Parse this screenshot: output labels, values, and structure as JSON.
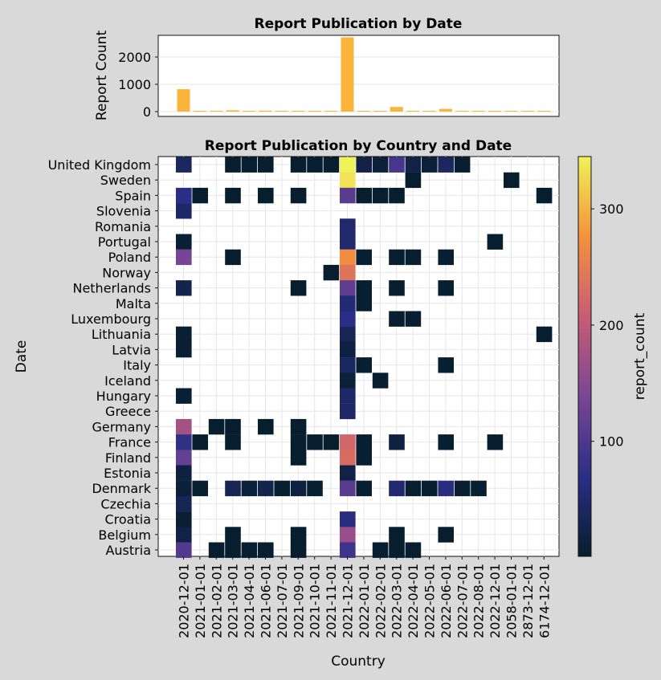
{
  "chart_data": [
    {
      "type": "bar",
      "title": "Report Publication by Date",
      "ylabel": "Report Count",
      "ylim": [
        0,
        2900
      ],
      "yticks": [
        0,
        1000,
        2000
      ],
      "grid": true,
      "categories": [
        "2020-12-01",
        "2021-01-01",
        "2021-02-01",
        "2021-03-01",
        "2021-04-01",
        "2021-06-01",
        "2021-07-01",
        "2021-09-01",
        "2021-10-01",
        "2021-11-01",
        "2021-12-01",
        "2022-01-01",
        "2022-02-01",
        "2022-03-01",
        "2022-04-01",
        "2022-05-01",
        "2022-06-01",
        "2022-07-01",
        "2022-08-01",
        "2022-12-01",
        "2058-01-01",
        "2873-12-01",
        "6174-12-01"
      ],
      "values": [
        820,
        5,
        5,
        50,
        5,
        35,
        5,
        30,
        5,
        5,
        2720,
        30,
        5,
        170,
        30,
        5,
        100,
        5,
        5,
        5,
        5,
        5,
        5
      ],
      "color": "#fbb43a"
    },
    {
      "type": "heatmap",
      "title": "Report Publication by Country and Date",
      "xlabel": "Country",
      "ylabel": "Date",
      "grid": true,
      "x": [
        "2020-12-01",
        "2021-01-01",
        "2021-02-01",
        "2021-03-01",
        "2021-04-01",
        "2021-06-01",
        "2021-07-01",
        "2021-09-01",
        "2021-10-01",
        "2021-11-01",
        "2021-12-01",
        "2022-01-01",
        "2022-02-01",
        "2022-03-01",
        "2022-04-01",
        "2022-05-01",
        "2022-06-01",
        "2022-07-01",
        "2022-08-01",
        "2022-12-01",
        "2058-01-01",
        "2873-12-01",
        "6174-12-01"
      ],
      "y": [
        "United Kingdom",
        "Sweden",
        "Spain",
        "Slovenia",
        "Romania",
        "Portugal",
        "Poland",
        "Norway",
        "Netherlands",
        "Malta",
        "Luxembourg",
        "Lithuania",
        "Latvia",
        "Italy",
        "Iceland",
        "Hungary",
        "Greece",
        "Germany",
        "France",
        "Finland",
        "Estonia",
        "Denmark",
        "Czechia",
        "Croatia",
        "Belgium",
        "Austria"
      ],
      "cells": [
        [
          "United Kingdom",
          "2020-12-01",
          40
        ],
        [
          "United Kingdom",
          "2021-03-01",
          1
        ],
        [
          "United Kingdom",
          "2021-04-01",
          1
        ],
        [
          "United Kingdom",
          "2021-06-01",
          1
        ],
        [
          "United Kingdom",
          "2021-09-01",
          1
        ],
        [
          "United Kingdom",
          "2021-10-01",
          1
        ],
        [
          "United Kingdom",
          "2021-11-01",
          1
        ],
        [
          "United Kingdom",
          "2021-12-01",
          345
        ],
        [
          "United Kingdom",
          "2022-01-01",
          20
        ],
        [
          "United Kingdom",
          "2022-02-01",
          10
        ],
        [
          "United Kingdom",
          "2022-03-01",
          95
        ],
        [
          "United Kingdom",
          "2022-04-01",
          20
        ],
        [
          "United Kingdom",
          "2022-05-01",
          10
        ],
        [
          "United Kingdom",
          "2022-06-01",
          40
        ],
        [
          "United Kingdom",
          "2022-07-01",
          3
        ],
        [
          "Sweden",
          "2021-12-01",
          335
        ],
        [
          "Sweden",
          "2022-04-01",
          1
        ],
        [
          "Sweden",
          "2058-01-01",
          1
        ],
        [
          "Spain",
          "2020-12-01",
          70
        ],
        [
          "Spain",
          "2021-01-01",
          1
        ],
        [
          "Spain",
          "2021-03-01",
          1
        ],
        [
          "Spain",
          "2021-06-01",
          1
        ],
        [
          "Spain",
          "2021-09-01",
          1
        ],
        [
          "Spain",
          "2021-12-01",
          110
        ],
        [
          "Spain",
          "2022-01-01",
          1
        ],
        [
          "Spain",
          "2022-02-01",
          1
        ],
        [
          "Spain",
          "2022-03-01",
          1
        ],
        [
          "Spain",
          "6174-12-01",
          1
        ],
        [
          "Slovenia",
          "2020-12-01",
          45
        ],
        [
          "Romania",
          "2021-12-01",
          50
        ],
        [
          "Portugal",
          "2020-12-01",
          5
        ],
        [
          "Portugal",
          "2021-12-01",
          50
        ],
        [
          "Portugal",
          "2022-12-01",
          1
        ],
        [
          "Poland",
          "2020-12-01",
          135
        ],
        [
          "Poland",
          "2021-03-01",
          1
        ],
        [
          "Poland",
          "2021-12-01",
          270
        ],
        [
          "Poland",
          "2022-01-01",
          3
        ],
        [
          "Poland",
          "2022-03-01",
          3
        ],
        [
          "Poland",
          "2022-04-01",
          3
        ],
        [
          "Poland",
          "2022-06-01",
          3
        ],
        [
          "Norway",
          "2021-11-01",
          1
        ],
        [
          "Norway",
          "2021-12-01",
          240
        ],
        [
          "Netherlands",
          "2020-12-01",
          25
        ],
        [
          "Netherlands",
          "2021-09-01",
          1
        ],
        [
          "Netherlands",
          "2021-12-01",
          115
        ],
        [
          "Netherlands",
          "2022-01-01",
          3
        ],
        [
          "Netherlands",
          "2022-03-01",
          3
        ],
        [
          "Netherlands",
          "2022-06-01",
          3
        ],
        [
          "Malta",
          "2021-12-01",
          55
        ],
        [
          "Malta",
          "2022-01-01",
          3
        ],
        [
          "Luxembourg",
          "2021-12-01",
          70
        ],
        [
          "Luxembourg",
          "2022-03-01",
          3
        ],
        [
          "Luxembourg",
          "2022-04-01",
          3
        ],
        [
          "Lithuania",
          "2020-12-01",
          5
        ],
        [
          "Lithuania",
          "2021-12-01",
          30
        ],
        [
          "Lithuania",
          "6174-12-01",
          1
        ],
        [
          "Latvia",
          "2020-12-01",
          5
        ],
        [
          "Latvia",
          "2021-12-01",
          15
        ],
        [
          "Italy",
          "2021-12-01",
          40
        ],
        [
          "Italy",
          "2022-01-01",
          3
        ],
        [
          "Italy",
          "2022-06-01",
          3
        ],
        [
          "Iceland",
          "2021-12-01",
          10
        ],
        [
          "Iceland",
          "2022-02-01",
          3
        ],
        [
          "Hungary",
          "2020-12-01",
          5
        ],
        [
          "Hungary",
          "2021-12-01",
          45
        ],
        [
          "Greece",
          "2021-12-01",
          45
        ],
        [
          "Germany",
          "2020-12-01",
          175
        ],
        [
          "Germany",
          "2021-02-01",
          1
        ],
        [
          "Germany",
          "2021-03-01",
          1
        ],
        [
          "Germany",
          "2021-06-01",
          1
        ],
        [
          "Germany",
          "2021-09-01",
          1
        ],
        [
          "France",
          "2020-12-01",
          75
        ],
        [
          "France",
          "2021-01-01",
          1
        ],
        [
          "France",
          "2021-03-01",
          1
        ],
        [
          "France",
          "2021-09-01",
          1
        ],
        [
          "France",
          "2021-10-01",
          1
        ],
        [
          "France",
          "2021-11-01",
          1
        ],
        [
          "France",
          "2021-12-01",
          220
        ],
        [
          "France",
          "2022-01-01",
          3
        ],
        [
          "France",
          "2022-03-01",
          15
        ],
        [
          "France",
          "2022-06-01",
          3
        ],
        [
          "France",
          "2022-12-01",
          1
        ],
        [
          "Finland",
          "2020-12-01",
          120
        ],
        [
          "Finland",
          "2021-09-01",
          1
        ],
        [
          "Finland",
          "2021-12-01",
          230
        ],
        [
          "Finland",
          "2022-01-01",
          3
        ],
        [
          "Estonia",
          "2020-12-01",
          15
        ],
        [
          "Estonia",
          "2021-12-01",
          20
        ],
        [
          "Denmark",
          "2020-12-01",
          10
        ],
        [
          "Denmark",
          "2021-01-01",
          3
        ],
        [
          "Denmark",
          "2021-03-01",
          30
        ],
        [
          "Denmark",
          "2021-04-01",
          10
        ],
        [
          "Denmark",
          "2021-06-01",
          25
        ],
        [
          "Denmark",
          "2021-07-01",
          3
        ],
        [
          "Denmark",
          "2021-09-01",
          15
        ],
        [
          "Denmark",
          "2021-10-01",
          3
        ],
        [
          "Denmark",
          "2021-12-01",
          110
        ],
        [
          "Denmark",
          "2022-01-01",
          3
        ],
        [
          "Denmark",
          "2022-03-01",
          50
        ],
        [
          "Denmark",
          "2022-04-01",
          3
        ],
        [
          "Denmark",
          "2022-05-01",
          3
        ],
        [
          "Denmark",
          "2022-06-01",
          65
        ],
        [
          "Denmark",
          "2022-07-01",
          3
        ],
        [
          "Denmark",
          "2022-08-01",
          3
        ],
        [
          "Czechia",
          "2020-12-01",
          30
        ],
        [
          "Croatia",
          "2020-12-01",
          5
        ],
        [
          "Croatia",
          "2021-12-01",
          65
        ],
        [
          "Belgium",
          "2020-12-01",
          20
        ],
        [
          "Belgium",
          "2021-03-01",
          1
        ],
        [
          "Belgium",
          "2021-09-01",
          1
        ],
        [
          "Belgium",
          "2021-12-01",
          165
        ],
        [
          "Belgium",
          "2022-03-01",
          1
        ],
        [
          "Belgium",
          "2022-06-01",
          1
        ],
        [
          "Austria",
          "2020-12-01",
          105
        ],
        [
          "Austria",
          "2021-02-01",
          1
        ],
        [
          "Austria",
          "2021-03-01",
          1
        ],
        [
          "Austria",
          "2021-04-01",
          1
        ],
        [
          "Austria",
          "2021-06-01",
          1
        ],
        [
          "Austria",
          "2021-09-01",
          1
        ],
        [
          "Austria",
          "2021-12-01",
          85
        ],
        [
          "Austria",
          "2022-02-01",
          1
        ],
        [
          "Austria",
          "2022-03-01",
          1
        ],
        [
          "Austria",
          "2022-04-01",
          1
        ]
      ],
      "colorbar": {
        "label": "report_count",
        "range": [
          1,
          345
        ],
        "ticks": [
          100,
          200,
          300
        ]
      }
    }
  ]
}
